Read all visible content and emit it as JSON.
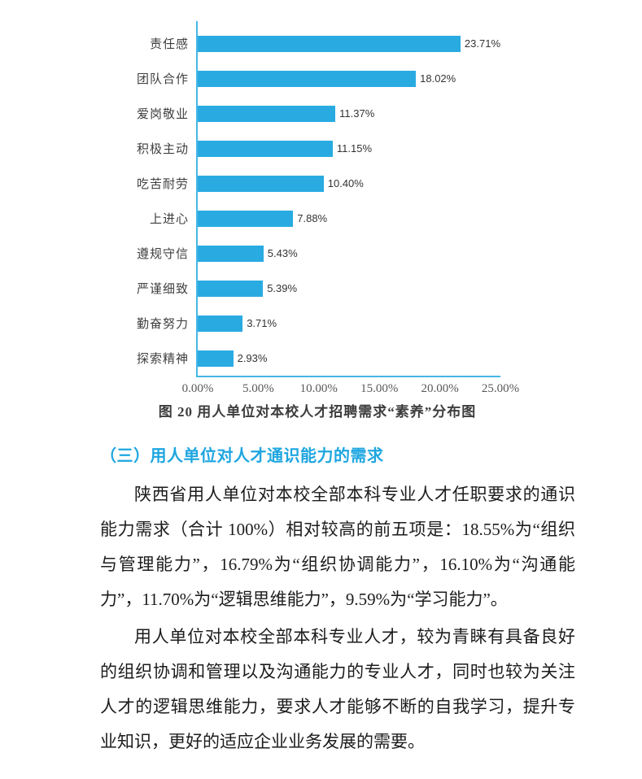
{
  "chart_data": {
    "type": "bar",
    "orientation": "horizontal",
    "title": "",
    "caption": "图 20  用人单位对本校人才招聘需求“素养”分布图",
    "categories": [
      "责任感",
      "团队合作",
      "爱岗敬业",
      "积极主动",
      "吃苦耐劳",
      "上进心",
      "遵规守信",
      "严谨细致",
      "勤奋努力",
      "探索精神"
    ],
    "values": [
      23.71,
      18.02,
      11.37,
      11.15,
      10.4,
      7.88,
      5.43,
      5.39,
      3.71,
      2.93
    ],
    "value_labels": [
      "23.71%",
      "18.02%",
      "11.37%",
      "11.15%",
      "10.40%",
      "7.88%",
      "5.43%",
      "5.39%",
      "3.71%",
      "2.93%"
    ],
    "x_ticks": [
      "0.00%",
      "5.00%",
      "10.00%",
      "15.00%",
      "20.00%",
      "25.00%"
    ],
    "xlim": [
      0,
      25
    ],
    "grid": "off",
    "legend": "none",
    "bar_color": "#29abe2",
    "axis_color": "#46b7e5"
  },
  "section": {
    "heading": "（三）用人单位对人才通识能力的需求",
    "heading_color": "#1ea6e0",
    "paragraphs": [
      "陕西省用人单位对本校全部本科专业人才任职要求的通识能力需求（合计 100%）相对较高的前五项是：18.55%为“组织与管理能力”，16.79%为“组织协调能力”，16.10%为“沟通能力”，11.70%为“逻辑思维能力”，9.59%为“学习能力”。",
      "用人单位对本校全部本科专业人才，较为青睐有具备良好的组织协调和管理以及沟通能力的专业人才，同时也较为关注人才的逻辑思维能力，要求人才能够不断的自我学习，提升专业知识，更好的适应企业业务发展的需要。"
    ]
  }
}
